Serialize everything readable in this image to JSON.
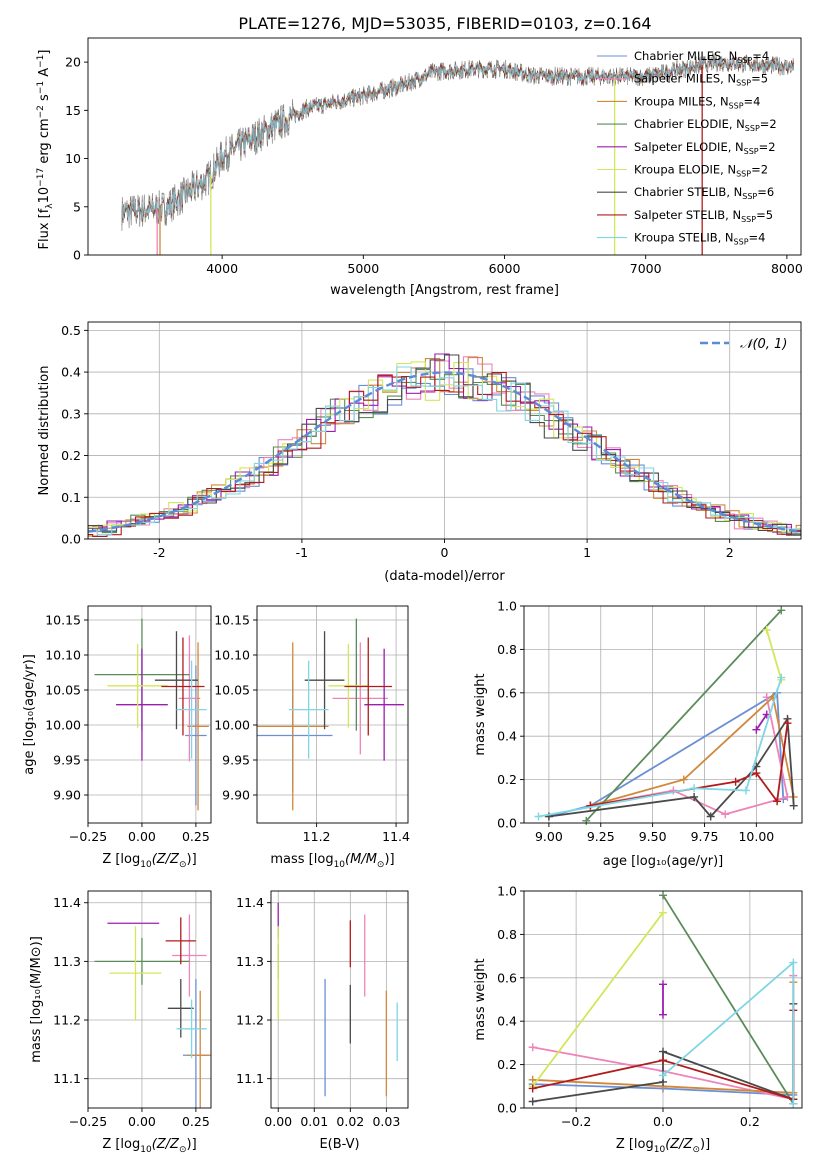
{
  "figure": {
    "title": "PLATE=1276, MJD=53035, FIBERID=0103, z=0.164"
  },
  "models": [
    {
      "name": "Chabrier MILES, N$_{SSP}$=4",
      "label_main": "Chabrier MILES, N",
      "label_sub": "SSP",
      "label_end": "=4",
      "color": "#6b8fd6"
    },
    {
      "name": "Salpeter MILES, N$_{SSP}$=5",
      "label_main": "Salpeter MILES, N",
      "label_sub": "SSP",
      "label_end": "=5",
      "color": "#ee84b8"
    },
    {
      "name": "Kroupa MILES, N$_{SSP}$=4",
      "label_main": "Kroupa MILES, N",
      "label_sub": "SSP",
      "label_end": "=4",
      "color": "#d2883c"
    },
    {
      "name": "Chabrier ELODIE, N$_{SSP}$=2",
      "label_main": "Chabrier ELODIE, N",
      "label_sub": "SSP",
      "label_end": "=2",
      "color": "#5a8c5a"
    },
    {
      "name": "Salpeter ELODIE, N$_{SSP}$=2",
      "label_main": "Salpeter ELODIE, N",
      "label_sub": "SSP",
      "label_end": "=2",
      "color": "#9b1fae"
    },
    {
      "name": "Kroupa ELODIE, N$_{SSP}$=2",
      "label_main": "Kroupa ELODIE, N",
      "label_sub": "SSP",
      "label_end": "=2",
      "color": "#d4e65a"
    },
    {
      "name": "Chabrier STELIB, N$_{SSP}$=6",
      "label_main": "Chabrier STELIB, N",
      "label_sub": "SSP",
      "label_end": "=6",
      "color": "#4a4a4a"
    },
    {
      "name": "Salpeter STELIB, N$_{SSP}$=5",
      "label_main": "Salpeter STELIB, N",
      "label_sub": "SSP",
      "label_end": "=5",
      "color": "#b01c1c"
    },
    {
      "name": "Kroupa STELIB, N$_{SSP}$=4",
      "label_main": "Kroupa STELIB, N",
      "label_sub": "SSP",
      "label_end": "=4",
      "color": "#7fd6e4"
    }
  ],
  "chart_data": [
    {
      "id": "spectrum",
      "type": "line",
      "xlabel": "wavelength [Angstrom, rest frame]",
      "ylabel_main": "Flux [f",
      "ylabel_sub": "λ",
      "ylabel_rest": "10",
      "ylabel_exp1": "−17",
      "ylabel_unit": " erg cm",
      "ylabel_exp2": "−2",
      "ylabel_s": " s",
      "ylabel_exp3": "−1",
      "ylabel_A": " A",
      "ylabel_exp4": "−1",
      "ylabel_close": "]",
      "xlim": [
        3050,
        8100
      ],
      "ylim": [
        0,
        22.5
      ],
      "xticks": [
        4000,
        5000,
        6000,
        7000,
        8000
      ],
      "yticks": [
        0,
        5,
        10,
        15,
        20
      ],
      "legend": "top-right",
      "spectrum_range": [
        3290,
        8050
      ],
      "continuum_anchors": [
        [
          3290,
          4.4
        ],
        [
          3600,
          4.9
        ],
        [
          3900,
          7.9
        ],
        [
          4000,
          10.2
        ],
        [
          4300,
          12.8
        ],
        [
          4600,
          15.2
        ],
        [
          5000,
          16.5
        ],
        [
          5300,
          17.7
        ],
        [
          5500,
          19.0
        ],
        [
          5800,
          19.3
        ],
        [
          6000,
          19.3
        ],
        [
          6200,
          18.6
        ],
        [
          6500,
          18.5
        ],
        [
          7000,
          18.5
        ],
        [
          7500,
          20.0
        ],
        [
          8050,
          19.5
        ]
      ],
      "model_dropouts": [
        [
          1,
          3540
        ],
        [
          2,
          3560
        ],
        [
          5,
          3920
        ],
        [
          7,
          7400
        ],
        [
          5,
          6780
        ]
      ]
    },
    {
      "id": "residuals",
      "type": "step",
      "xlabel": "(data-model)/error",
      "ylabel": "Normed distribution",
      "xlim": [
        -2.5,
        2.5
      ],
      "ylim": [
        0,
        0.52
      ],
      "xticks": [
        -2,
        -1,
        0,
        1,
        2
      ],
      "yticks": [
        0.0,
        0.1,
        0.2,
        0.3,
        0.4,
        0.5
      ],
      "grid": true,
      "legend": "top-right",
      "reference_label": "𝒩(0, 1)",
      "reference_color": "#5b8bd6",
      "bin_width": 0.1
    },
    {
      "id": "age_vs_Z",
      "type": "errorbar",
      "xlabel_main": "Z [log",
      "xlabel_sub": "10",
      "xlabel_rest": "(Z/Z",
      "xlabel_sun": "⊙",
      "xlabel_close": ")]",
      "ylabel": "age  [log₁₀(age/yr)]",
      "xlim": [
        -0.25,
        0.32
      ],
      "ylim": [
        9.86,
        10.17
      ],
      "xticks": [
        -0.25,
        0.0,
        0.25
      ],
      "yticks": [
        9.9,
        9.95,
        10.0,
        10.05,
        10.1,
        10.15
      ],
      "grid": true,
      "points": [
        {
          "model": 0,
          "x": 0.25,
          "y": 9.985,
          "xerr": 0.05,
          "yerr": 0.1
        },
        {
          "model": 1,
          "x": 0.22,
          "y": 10.038,
          "xerr": 0.05,
          "yerr": 0.09
        },
        {
          "model": 2,
          "x": 0.26,
          "y": 9.998,
          "xerr": 0.05,
          "yerr": 0.12
        },
        {
          "model": 3,
          "x": 0.0,
          "y": 10.072,
          "xerr": 0.22,
          "yerr": 0.08
        },
        {
          "model": 4,
          "x": 0.0,
          "y": 10.029,
          "xerr": 0.12,
          "yerr": 0.08
        },
        {
          "model": 5,
          "x": -0.02,
          "y": 10.056,
          "xerr": 0.14,
          "yerr": 0.06
        },
        {
          "model": 6,
          "x": 0.16,
          "y": 10.064,
          "xerr": 0.1,
          "yerr": 0.07
        },
        {
          "model": 7,
          "x": 0.19,
          "y": 10.055,
          "xerr": 0.1,
          "yerr": 0.07
        },
        {
          "model": 8,
          "x": 0.23,
          "y": 10.022,
          "xerr": 0.07,
          "yerr": 0.07
        }
      ]
    },
    {
      "id": "age_vs_mass",
      "type": "errorbar",
      "xlabel_main": "mass [log",
      "xlabel_sub": "10",
      "xlabel_rest": "(M/M",
      "xlabel_sun": "⊙",
      "xlabel_close": ")]",
      "ylabel": "",
      "xlim": [
        11.05,
        11.43
      ],
      "ylim": [
        9.86,
        10.17
      ],
      "xticks": [
        11.2,
        11.4
      ],
      "yticks": [
        9.9,
        9.95,
        10.0,
        10.05,
        10.1,
        10.15
      ],
      "grid": true,
      "points": [
        {
          "model": 0,
          "x": 11.14,
          "y": 9.985,
          "xerr": 0.1,
          "yerr": 0.08
        },
        {
          "model": 1,
          "x": 11.31,
          "y": 10.038,
          "xerr": 0.07,
          "yerr": 0.08
        },
        {
          "model": 2,
          "x": 11.14,
          "y": 9.998,
          "xerr": 0.09,
          "yerr": 0.12
        },
        {
          "model": 3,
          "x": 11.3,
          "y": 10.072,
          "xerr": 0.0,
          "yerr": 0.08
        },
        {
          "model": 4,
          "x": 11.37,
          "y": 10.029,
          "xerr": 0.05,
          "yerr": 0.08
        },
        {
          "model": 5,
          "x": 11.28,
          "y": 10.056,
          "xerr": 0.05,
          "yerr": 0.06
        },
        {
          "model": 6,
          "x": 11.22,
          "y": 10.064,
          "xerr": 0.05,
          "yerr": 0.07
        },
        {
          "model": 7,
          "x": 11.33,
          "y": 10.055,
          "xerr": 0.06,
          "yerr": 0.07
        },
        {
          "model": 8,
          "x": 11.18,
          "y": 10.022,
          "xerr": 0.05,
          "yerr": 0.07
        }
      ]
    },
    {
      "id": "weight_vs_age",
      "type": "line",
      "xlabel": "age  [log₁₀(age/yr)]",
      "ylabel": "mass weight",
      "xlim": [
        8.88,
        10.22
      ],
      "ylim": [
        0,
        1.0
      ],
      "xticks": [
        9.0,
        9.25,
        9.5,
        9.75,
        10.0
      ],
      "yticks": [
        0.0,
        0.2,
        0.4,
        0.6,
        0.8,
        1.0
      ],
      "grid": true,
      "series": [
        {
          "model": 0,
          "points": [
            [
              9.0,
              0.03
            ],
            [
              9.2,
              0.08
            ],
            [
              10.1,
              0.6
            ],
            [
              10.13,
              0.11
            ]
          ]
        },
        {
          "model": 1,
          "points": [
            [
              9.2,
              0.08
            ],
            [
              9.6,
              0.15
            ],
            [
              9.85,
              0.04
            ],
            [
              10.15,
              0.12
            ],
            [
              10.05,
              0.58
            ]
          ]
        },
        {
          "model": 2,
          "points": [
            [
              9.2,
              0.08
            ],
            [
              9.65,
              0.2
            ],
            [
              10.08,
              0.58
            ],
            [
              10.18,
              0.12
            ]
          ]
        },
        {
          "model": 3,
          "points": [
            [
              9.18,
              0.01
            ],
            [
              10.12,
              0.98
            ]
          ]
        },
        {
          "model": 4,
          "points": [
            [
              10.0,
              0.43
            ],
            [
              10.05,
              0.5
            ]
          ]
        },
        {
          "model": 5,
          "points": [
            [
              10.05,
              0.89
            ],
            [
              10.12,
              0.66
            ]
          ]
        },
        {
          "model": 6,
          "points": [
            [
              9.0,
              0.03
            ],
            [
              9.7,
              0.12
            ],
            [
              9.78,
              0.03
            ],
            [
              10.0,
              0.26
            ],
            [
              10.15,
              0.48
            ],
            [
              10.18,
              0.08
            ]
          ]
        },
        {
          "model": 7,
          "points": [
            [
              9.2,
              0.08
            ],
            [
              9.9,
              0.19
            ],
            [
              10.0,
              0.23
            ],
            [
              10.1,
              0.1
            ],
            [
              10.15,
              0.46
            ]
          ]
        },
        {
          "model": 8,
          "points": [
            [
              8.95,
              0.03
            ],
            [
              9.7,
              0.16
            ],
            [
              9.95,
              0.15
            ],
            [
              10.12,
              0.67
            ]
          ]
        }
      ]
    },
    {
      "id": "mass_vs_Z",
      "type": "errorbar",
      "xlabel_main": "Z [log",
      "xlabel_sub": "10",
      "xlabel_rest": "(Z/Z",
      "xlabel_sun": "⊙",
      "xlabel_close": ")]",
      "ylabel": "mass [log₁₀(M/M⊙)]",
      "xlim": [
        -0.25,
        0.32
      ],
      "ylim": [
        11.05,
        11.42
      ],
      "xticks": [
        -0.25,
        0.0,
        0.25
      ],
      "yticks": [
        11.1,
        11.2,
        11.3,
        11.4
      ],
      "grid": true,
      "points": [
        {
          "model": 0,
          "x": 0.25,
          "y": 11.14,
          "xerr": 0.06,
          "yerr": 0.13
        },
        {
          "model": 1,
          "x": 0.22,
          "y": 11.31,
          "xerr": 0.08,
          "yerr": 0.07
        },
        {
          "model": 2,
          "x": 0.27,
          "y": 11.14,
          "xerr": 0.06,
          "yerr": 0.11
        },
        {
          "model": 3,
          "x": 0.0,
          "y": 11.3,
          "xerr": 0.22,
          "yerr": 0.04
        },
        {
          "model": 4,
          "x": -0.04,
          "y": 11.365,
          "xerr": 0.12,
          "yerr": 0.0
        },
        {
          "model": 5,
          "x": -0.03,
          "y": 11.28,
          "xerr": 0.12,
          "yerr": 0.08
        },
        {
          "model": 6,
          "x": 0.18,
          "y": 11.22,
          "xerr": 0.06,
          "yerr": 0.05
        },
        {
          "model": 7,
          "x": 0.18,
          "y": 11.335,
          "xerr": 0.07,
          "yerr": 0.04
        },
        {
          "model": 8,
          "x": 0.23,
          "y": 11.185,
          "xerr": 0.07,
          "yerr": 0.05
        }
      ]
    },
    {
      "id": "mass_vs_ebv",
      "type": "errorbar",
      "xlabel": "E(B-V)",
      "ylabel": "",
      "xlim": [
        -0.002,
        0.036
      ],
      "ylim": [
        11.05,
        11.42
      ],
      "xticks": [
        0.0,
        0.01,
        0.02,
        0.03
      ],
      "yticks": [
        11.1,
        11.2,
        11.3,
        11.4
      ],
      "grid": true,
      "points": [
        {
          "model": 0,
          "x": 0.013,
          "y": 11.17,
          "xerr": 0,
          "yerr": 0.1
        },
        {
          "model": 1,
          "x": 0.024,
          "y": 11.31,
          "xerr": 0,
          "yerr": 0.07
        },
        {
          "model": 2,
          "x": 0.03,
          "y": 11.16,
          "xerr": 0,
          "yerr": 0.09
        },
        {
          "model": 3,
          "x": 0.0,
          "y": 11.3,
          "xerr": 0,
          "yerr": 0.03
        },
        {
          "model": 4,
          "x": 0.0,
          "y": 11.37,
          "xerr": 0,
          "yerr": 0.03
        },
        {
          "model": 5,
          "x": 0.0,
          "y": 11.28,
          "xerr": 0,
          "yerr": 0.08
        },
        {
          "model": 6,
          "x": 0.02,
          "y": 11.21,
          "xerr": 0,
          "yerr": 0.05
        },
        {
          "model": 7,
          "x": 0.02,
          "y": 11.33,
          "xerr": 0,
          "yerr": 0.04
        },
        {
          "model": 8,
          "x": 0.033,
          "y": 11.18,
          "xerr": 0,
          "yerr": 0.05
        }
      ]
    },
    {
      "id": "weight_vs_Z",
      "type": "line",
      "xlabel_main": "Z [log",
      "xlabel_sub": "10",
      "xlabel_rest": "(Z/Z",
      "xlabel_sun": "⊙",
      "xlabel_close": ")]",
      "ylabel": "mass weight",
      "xlim": [
        -0.32,
        0.32
      ],
      "ylim": [
        0,
        1.0
      ],
      "xticks": [
        -0.2,
        0.0,
        0.2
      ],
      "yticks": [
        0.0,
        0.2,
        0.4,
        0.6,
        0.8,
        1.0
      ],
      "grid": true,
      "series": [
        {
          "model": 0,
          "points": [
            [
              -0.3,
              0.11
            ],
            [
              0.0,
              0.09
            ],
            [
              0.3,
              0.06
            ]
          ]
        },
        {
          "model": 1,
          "points": [
            [
              -0.3,
              0.28
            ],
            [
              0.0,
              0.17
            ],
            [
              0.3,
              0.04
            ],
            [
              0.3,
              0.61
            ]
          ]
        },
        {
          "model": 2,
          "points": [
            [
              -0.3,
              0.13
            ],
            [
              0.0,
              0.1
            ],
            [
              0.3,
              0.07
            ],
            [
              0.3,
              0.58
            ]
          ]
        },
        {
          "model": 3,
          "points": [
            [
              0.0,
              0.98
            ],
            [
              0.3,
              0.02
            ]
          ]
        },
        {
          "model": 4,
          "points": [
            [
              0.0,
              0.57
            ],
            [
              0.0,
              0.43
            ]
          ]
        },
        {
          "model": 5,
          "points": [
            [
              -0.3,
              0.1
            ],
            [
              0.0,
              0.9
            ]
          ]
        },
        {
          "model": 6,
          "points": [
            [
              -0.3,
              0.03
            ],
            [
              0.0,
              0.12
            ],
            [
              0.0,
              0.26
            ],
            [
              0.3,
              0.04
            ],
            [
              0.3,
              0.48
            ]
          ]
        },
        {
          "model": 7,
          "points": [
            [
              -0.3,
              0.09
            ],
            [
              0.0,
              0.22
            ],
            [
              0.3,
              0.04
            ],
            [
              0.3,
              0.45
            ]
          ]
        },
        {
          "model": 8,
          "points": [
            [
              0.0,
              0.15
            ],
            [
              0.3,
              0.67
            ],
            [
              0.3,
              0.02
            ]
          ]
        }
      ]
    }
  ]
}
